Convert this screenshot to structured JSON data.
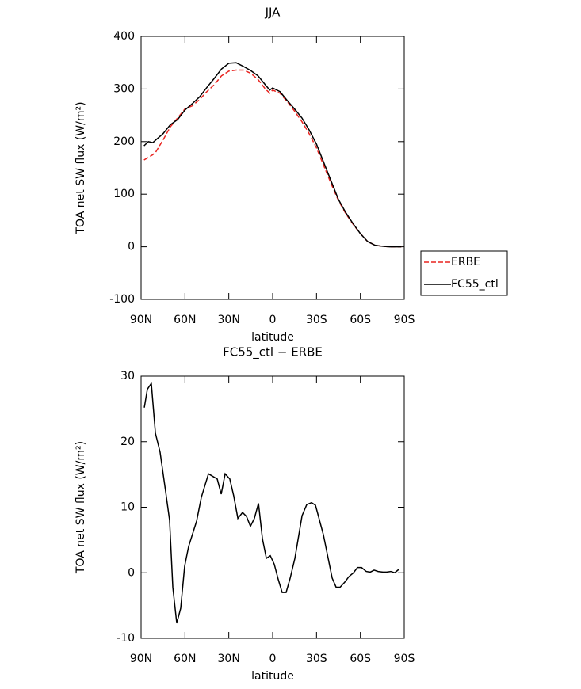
{
  "chart_data": [
    {
      "type": "line",
      "title": "JJA",
      "xlabel": "latitude",
      "ylabel": "TOA net SW flux (W/m²)",
      "xlim": [
        90,
        -90
      ],
      "xticks": [
        {
          "value": 90,
          "label": "90N"
        },
        {
          "value": 60,
          "label": "60N"
        },
        {
          "value": 30,
          "label": "30N"
        },
        0,
        {
          "value": -30,
          "label": "30S"
        },
        {
          "value": -60,
          "label": "60S"
        },
        {
          "value": -90,
          "label": "90S"
        }
      ],
      "ylim": [
        -100,
        400
      ],
      "yticks": [
        -100,
        0,
        100,
        200,
        300,
        400
      ],
      "legend": "outside right",
      "x": [
        88,
        85,
        82,
        80,
        75,
        70,
        65,
        60,
        55,
        50,
        45,
        40,
        35,
        30,
        25,
        20,
        15,
        10,
        5,
        2,
        0,
        -5,
        -10,
        -15,
        -20,
        -25,
        -30,
        -35,
        -40,
        -45,
        -50,
        -55,
        -60,
        -65,
        -70,
        -75,
        -80,
        -85,
        -88
      ],
      "series": [
        {
          "name": "ERBE",
          "color": "#e8231f",
          "linestyle": "dashed",
          "values": [
            165,
            170,
            175,
            180,
            203,
            228,
            245,
            262,
            268,
            280,
            295,
            308,
            325,
            334,
            336,
            336,
            330,
            318,
            300,
            292,
            298,
            292,
            276,
            258,
            238,
            215,
            188,
            154,
            120,
            88,
            63,
            43,
            25,
            10,
            3,
            1,
            0,
            0,
            0
          ]
        },
        {
          "name": "FC55_ctl",
          "color": "#000000",
          "linestyle": "solid",
          "values": [
            192,
            200,
            198,
            203,
            215,
            232,
            242,
            260,
            272,
            285,
            303,
            320,
            338,
            349,
            350,
            343,
            335,
            325,
            308,
            298,
            302,
            295,
            278,
            262,
            245,
            222,
            195,
            160,
            125,
            90,
            65,
            44,
            25,
            10,
            3,
            1,
            0,
            0,
            0
          ]
        }
      ]
    },
    {
      "type": "line",
      "title": "FC55_ctl − ERBE",
      "xlabel": "latitude",
      "ylabel": "TOA net SW flux (W/m²)",
      "xlim": [
        90,
        -90
      ],
      "xticks": [
        {
          "value": 90,
          "label": "90N"
        },
        {
          "value": 60,
          "label": "60N"
        },
        {
          "value": 30,
          "label": "30N"
        },
        0,
        {
          "value": -30,
          "label": "30S"
        },
        {
          "value": -60,
          "label": "60S"
        },
        {
          "value": -90,
          "label": "90S"
        }
      ],
      "ylim": [
        -10,
        30
      ],
      "yticks": [
        -10,
        0,
        10,
        20,
        30
      ],
      "x": [
        87.8,
        85.7,
        83,
        80.2,
        77,
        73.2,
        70.5,
        68.3,
        65.6,
        62.9,
        60.2,
        57.5,
        52,
        48.8,
        43.9,
        37.9,
        35.2,
        32.5,
        29.3,
        26.6,
        23.8,
        20.6,
        17.9,
        15.2,
        12.5,
        9.7,
        7,
        4.3,
        1.6,
        -1.1,
        -3.8,
        -6.5,
        -9.2,
        -12,
        -15.2,
        -20.1,
        -23.3,
        -26.6,
        -29.3,
        -34.7,
        -40.7,
        -43.4,
        -46.1,
        -49.4,
        -52.1,
        -55.3,
        -58,
        -60.8,
        -64,
        -66.7,
        -69.4,
        -72.1,
        -75.4,
        -78,
        -80.8,
        -83.5,
        -86.2
      ],
      "series": [
        {
          "color": "#000000",
          "linestyle": "solid",
          "values": [
            25.2,
            28,
            28.9,
            21.3,
            18.4,
            12.4,
            8,
            -2.2,
            -7.7,
            -5.4,
            1,
            4,
            7.9,
            11.5,
            15.1,
            14.3,
            12,
            15.1,
            14.3,
            11.7,
            8.3,
            9.2,
            8.6,
            7.1,
            8.3,
            10.6,
            5.2,
            2.2,
            2.6,
            1.3,
            -1,
            -3,
            -3,
            -0.8,
            2.2,
            8.7,
            10.4,
            10.7,
            10.3,
            5.8,
            -0.8,
            -2.2,
            -2.2,
            -1.4,
            -0.6,
            0,
            0.8,
            0.8,
            0.2,
            0.1,
            0.4,
            0.2,
            0.1,
            0.1,
            0.2,
            0,
            0.5
          ]
        }
      ]
    }
  ]
}
